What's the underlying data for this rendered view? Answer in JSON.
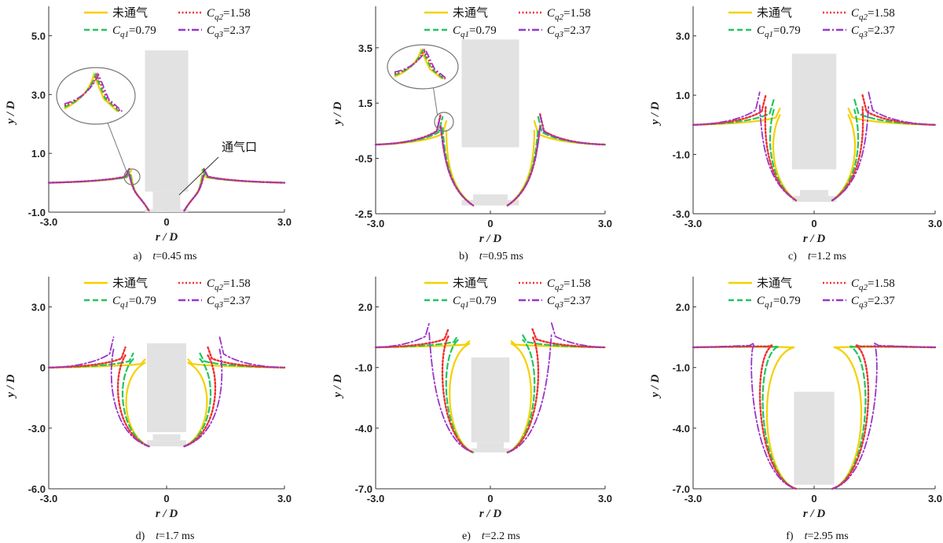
{
  "legend": {
    "untreated": "未通气",
    "cq1": "=0.79",
    "cq2": "=1.58",
    "cq3": "=2.37",
    "cq_symbol": "C",
    "cq1_sub": "q1",
    "cq2_sub": "q2",
    "cq3_sub": "q3"
  },
  "colors": {
    "untreated": "#f5d000",
    "cq1": "#22c55e",
    "cq2": "#ef3030",
    "cq3": "#9b35c8",
    "body": "#e2e2e2",
    "axis": "#333333",
    "zoom": "#777777"
  },
  "annotation_vent": "通气口",
  "chart_data": [
    {
      "type": "line",
      "caption_letter": "a)",
      "caption_var": "t",
      "caption_value": "=0.45 ms",
      "xlabel": "r / D",
      "ylabel": "y / D",
      "xlim": [
        -3.0,
        3.0
      ],
      "ylim": [
        -1.0,
        6.0
      ],
      "xticks": [
        "-3.0",
        "0",
        "3.0"
      ],
      "yticks": [
        "-1.0",
        "1.0",
        "3.0",
        "5.0"
      ]
    },
    {
      "type": "line",
      "caption_letter": "b)",
      "caption_var": "t",
      "caption_value": "=0.95 ms",
      "xlabel": "r / D",
      "ylabel": "y / D",
      "xlim": [
        -3.0,
        3.0
      ],
      "ylim": [
        -2.5,
        5.0
      ],
      "xticks": [
        "-3.0",
        "0",
        "3.0"
      ],
      "yticks": [
        "-2.5",
        "-0.5",
        "1.5",
        "3.5"
      ]
    },
    {
      "type": "line",
      "caption_letter": "c)",
      "caption_var": "t",
      "caption_value": "=1.2 ms",
      "xlabel": "r / D",
      "ylabel": "y / D",
      "xlim": [
        -3.0,
        3.0
      ],
      "ylim": [
        -3.0,
        4.0
      ],
      "xticks": [
        "-3.0",
        "0",
        "3.0"
      ],
      "yticks": [
        "-3.0",
        "-1.0",
        "1.0",
        "3.0"
      ]
    },
    {
      "type": "line",
      "caption_letter": "d)",
      "caption_var": "t",
      "caption_value": "=1.7 ms",
      "xlabel": "r / D",
      "ylabel": "y / D",
      "xlim": [
        -3.0,
        3.0
      ],
      "ylim": [
        -6.0,
        4.5
      ],
      "xticks": [
        "-3.0",
        "0",
        "3.0"
      ],
      "yticks": [
        "-6.0",
        "-3.0",
        "0",
        "3.0"
      ]
    },
    {
      "type": "line",
      "caption_letter": "e)",
      "caption_var": "t",
      "caption_value": "=2.2 ms",
      "xlabel": "r / D",
      "ylabel": "y / D",
      "xlim": [
        -3.0,
        3.0
      ],
      "ylim": [
        -7.0,
        3.5
      ],
      "xticks": [
        "-3.0",
        "0",
        "3.0"
      ],
      "yticks": [
        "-7.0",
        "-4.0",
        "-1.0",
        "2.0"
      ]
    },
    {
      "type": "line",
      "caption_letter": "f)",
      "caption_var": "t",
      "caption_value": "=2.95 ms",
      "xlabel": "r / D",
      "ylabel": "y / D",
      "xlim": [
        -3.0,
        3.0
      ],
      "ylim": [
        -7.0,
        3.5
      ],
      "xticks": [
        "-3.0",
        "0",
        "3.0"
      ],
      "yticks": [
        "-7.0",
        "-4.0",
        "-1.0",
        "2.0"
      ]
    }
  ]
}
